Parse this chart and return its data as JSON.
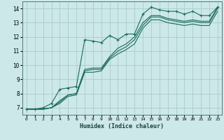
{
  "background_color": "#cce8e8",
  "grid_color": "#aacccc",
  "line_color": "#1a6b5a",
  "xlabel": "Humidex (Indice chaleur)",
  "xlim": [
    -0.5,
    23.5
  ],
  "ylim": [
    6.5,
    14.5
  ],
  "xticks": [
    0,
    1,
    2,
    3,
    4,
    5,
    6,
    7,
    8,
    9,
    10,
    11,
    12,
    13,
    14,
    15,
    16,
    17,
    18,
    19,
    20,
    21,
    22,
    23
  ],
  "yticks": [
    7,
    8,
    9,
    10,
    11,
    12,
    13,
    14
  ],
  "series": [
    {
      "x": [
        0,
        1,
        2,
        3,
        4,
        5,
        6,
        7,
        8,
        9,
        10,
        11,
        12,
        13,
        14,
        15,
        16,
        17,
        18,
        19,
        20,
        21,
        22,
        23
      ],
      "y": [
        6.9,
        6.9,
        7.0,
        7.3,
        8.3,
        8.4,
        8.5,
        11.8,
        11.7,
        11.6,
        12.1,
        11.8,
        12.2,
        12.2,
        13.6,
        14.1,
        13.9,
        13.8,
        13.8,
        13.6,
        13.8,
        13.5,
        13.5,
        14.1
      ],
      "marker": "+"
    },
    {
      "x": [
        0,
        1,
        2,
        3,
        4,
        5,
        6,
        7,
        8,
        9,
        10,
        11,
        12,
        13,
        14,
        15,
        16,
        17,
        18,
        19,
        20,
        21,
        22,
        23
      ],
      "y": [
        6.9,
        6.9,
        6.9,
        7.0,
        7.5,
        7.9,
        8.0,
        9.7,
        9.8,
        9.8,
        10.6,
        11.2,
        11.5,
        12.0,
        13.0,
        13.5,
        13.5,
        13.3,
        13.2,
        13.1,
        13.2,
        13.1,
        13.1,
        14.1
      ],
      "marker": null
    },
    {
      "x": [
        0,
        1,
        2,
        3,
        4,
        5,
        6,
        7,
        8,
        9,
        10,
        11,
        12,
        13,
        14,
        15,
        16,
        17,
        18,
        19,
        20,
        21,
        22,
        23
      ],
      "y": [
        6.9,
        6.9,
        6.9,
        7.0,
        7.4,
        7.9,
        8.0,
        9.6,
        9.7,
        9.7,
        10.5,
        11.0,
        11.3,
        11.8,
        12.8,
        13.4,
        13.4,
        13.2,
        13.1,
        13.0,
        13.1,
        13.0,
        13.0,
        14.0
      ],
      "marker": null
    },
    {
      "x": [
        0,
        1,
        2,
        3,
        4,
        5,
        6,
        7,
        8,
        9,
        10,
        11,
        12,
        13,
        14,
        15,
        16,
        17,
        18,
        19,
        20,
        21,
        22,
        23
      ],
      "y": [
        6.9,
        6.9,
        6.9,
        7.0,
        7.3,
        7.8,
        7.9,
        9.5,
        9.5,
        9.6,
        10.4,
        10.8,
        11.1,
        11.5,
        12.6,
        13.2,
        13.2,
        13.0,
        12.9,
        12.8,
        12.9,
        12.8,
        12.8,
        13.8
      ],
      "marker": null
    }
  ]
}
